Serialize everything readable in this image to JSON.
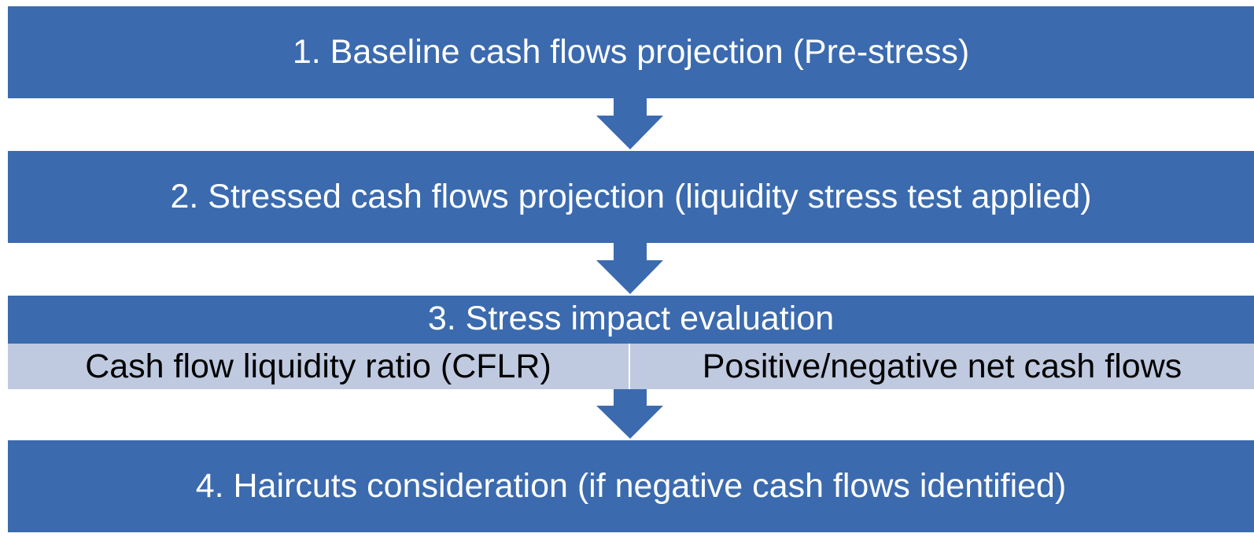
{
  "steps": [
    {
      "label": "1. Baseline cash flows projection (Pre-stress)"
    },
    {
      "label": "2. Stressed cash flows projection (liquidity stress test applied)"
    },
    {
      "label": "3. Stress impact evaluation",
      "items": [
        "Cash flow liquidity ratio (CFLR)",
        "Positive/negative net cash flows"
      ]
    },
    {
      "label": "4. Haircuts consideration (if negative cash flows identified)"
    }
  ]
}
